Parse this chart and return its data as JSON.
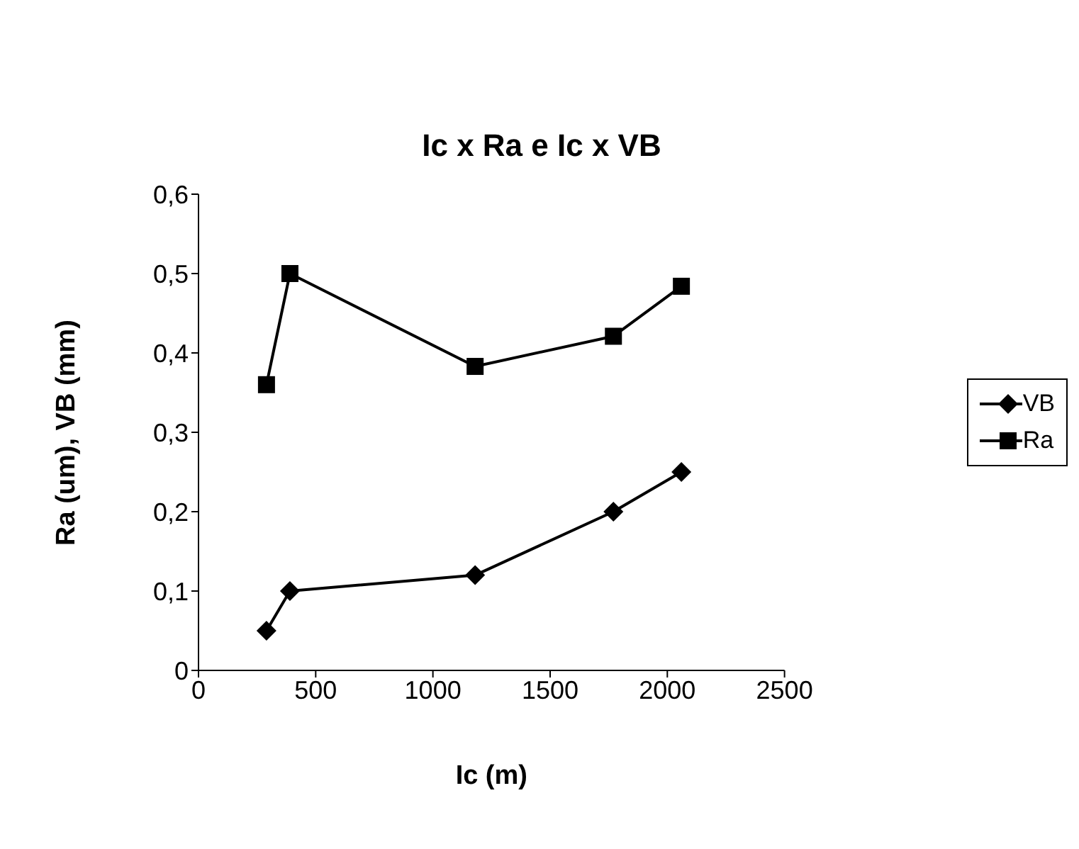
{
  "chart_data": {
    "type": "line",
    "title": "Ic x Ra e Ic x VB",
    "xlabel": "Ic (m)",
    "ylabel": "Ra (um), VB (mm)",
    "x": [
      290,
      390,
      1180,
      1770,
      2060
    ],
    "series": [
      {
        "name": "VB",
        "color": "#000000",
        "marker": "diamond",
        "values": [
          0.05,
          0.1,
          0.12,
          0.2,
          0.25
        ]
      },
      {
        "name": "Ra",
        "color": "#000000",
        "marker": "square",
        "values": [
          0.36,
          0.5,
          0.383,
          0.421,
          0.484
        ]
      }
    ],
    "xlim": [
      0,
      2500
    ],
    "xticks": [
      0,
      500,
      1000,
      1500,
      2000,
      2500
    ],
    "ylim": [
      0,
      0.6
    ],
    "yticks": [
      {
        "value": 0,
        "label": "0"
      },
      {
        "value": 0.1,
        "label": "0,1"
      },
      {
        "value": 0.2,
        "label": "0,2"
      },
      {
        "value": 0.3,
        "label": "0,3"
      },
      {
        "value": 0.4,
        "label": "0,4"
      },
      {
        "value": 0.5,
        "label": "0,5"
      },
      {
        "value": 0.6,
        "label": "0,6"
      }
    ],
    "grid": false,
    "legend": "right",
    "line_style": "solid"
  }
}
